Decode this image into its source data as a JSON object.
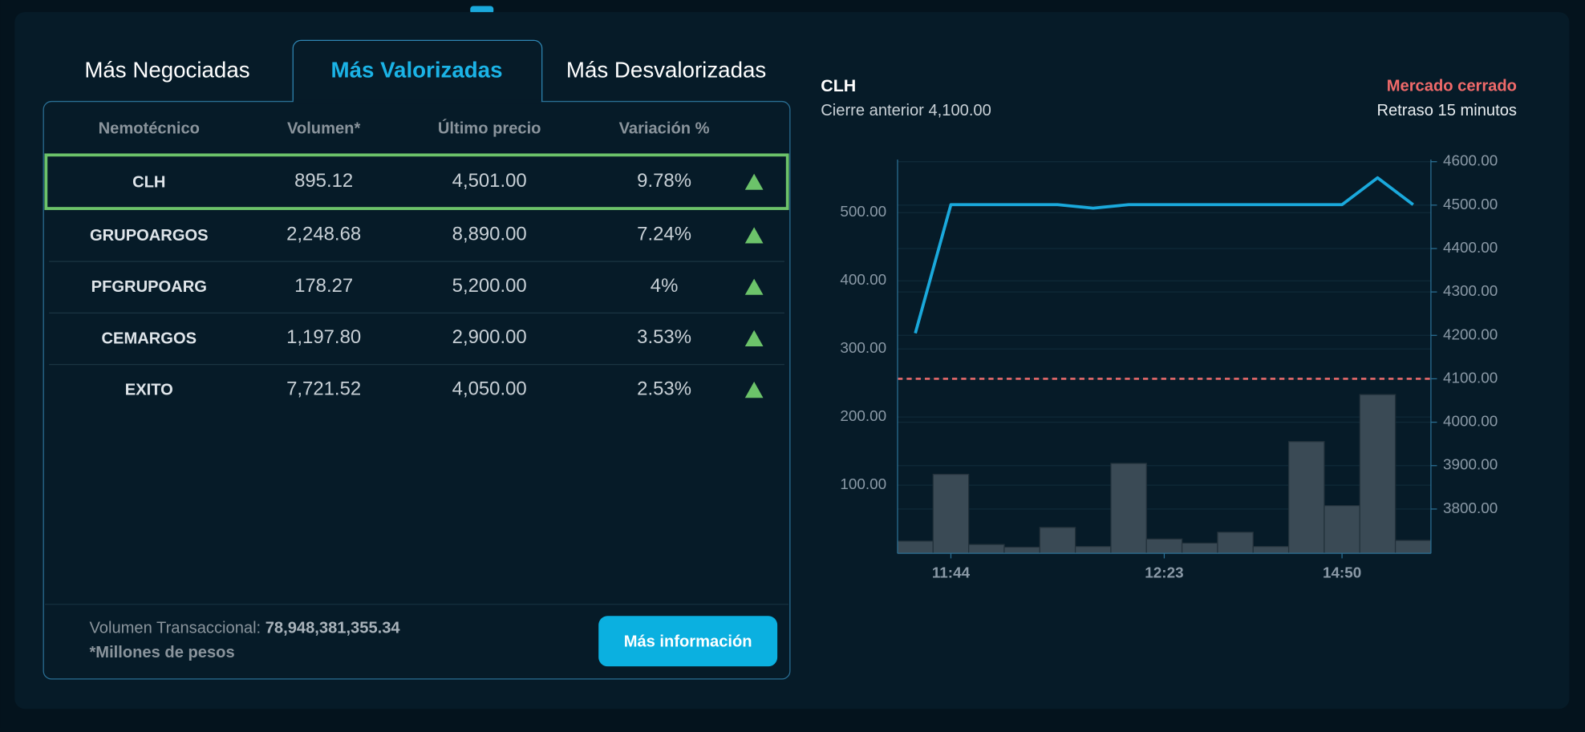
{
  "tabs": [
    "Más Negociadas",
    "Más Valorizadas",
    "Más Desvalorizadas"
  ],
  "active_tab": 1,
  "table": {
    "header": [
      "Nemotécnico",
      "Volumen*",
      "Último precio",
      "Variación %"
    ],
    "rows": [
      [
        "CLH",
        "895.12",
        "4,501.00",
        "9.78%"
      ],
      [
        "GRUPOARGOS",
        "2,248.68",
        "8,890.00",
        "7.24%"
      ],
      [
        "PFGRUPOARG",
        "178.27",
        "5,200.00",
        "4%"
      ],
      [
        "CEMARGOS",
        "1,197.80",
        "2,900.00",
        "3.53%"
      ],
      [
        "EXITO",
        "7,721.52",
        "4,050.00",
        "2.53%"
      ]
    ]
  },
  "footer": {
    "label": "Volumen Transaccional:",
    "value": "78,948,381,355.34",
    "note": "*Millones de pesos",
    "button": "Más información"
  },
  "detail": {
    "symbol": "CLH",
    "previous_close": "Cierre anterior 4,100.00",
    "status": "Mercado cerrado",
    "delay": "Retraso 15 minutos"
  },
  "chart_data": {
    "type": "bar-line",
    "categories": [
      null,
      "11:44",
      null,
      null,
      null,
      null,
      null,
      "12:23",
      null,
      null,
      null,
      null,
      "14:50",
      null,
      null
    ],
    "series": [
      {
        "type": "bar",
        "color": "#3a4a55",
        "values": [
          18,
          116,
          13,
          9,
          38,
          10,
          132,
          21,
          15,
          31,
          10,
          164,
          70,
          233,
          19
        ]
      },
      {
        "type": "line",
        "axis": "y2",
        "color": "#1aa9dc",
        "values": [
          4205,
          4501,
          4501,
          4501,
          4501,
          4493,
          4501,
          4501,
          4501,
          4501,
          4501,
          4501,
          4501,
          4563,
          4501
        ]
      }
    ],
    "reference_line": {
      "axis": "y2",
      "value": 4100,
      "color": "#e86b6b"
    },
    "ylim": [
      0,
      578
    ],
    "yticks": [
      {
        "value": 100,
        "label": "100.00"
      },
      {
        "value": 200,
        "label": "200.00"
      },
      {
        "value": 300,
        "label": "300.00"
      },
      {
        "value": 400,
        "label": "400.00"
      },
      {
        "value": 500,
        "label": "500.00"
      }
    ],
    "y2lim": [
      3698,
      4605
    ],
    "y2ticks": [
      {
        "value": 3800,
        "label": "3800.00"
      },
      {
        "value": 3900,
        "label": "3900.00"
      },
      {
        "value": 4000,
        "label": "4000.00"
      },
      {
        "value": 4100,
        "label": "4100.00"
      },
      {
        "value": 4200,
        "label": "4200.00"
      },
      {
        "value": 4300,
        "label": "4300.00"
      },
      {
        "value": 4400,
        "label": "4400.00"
      },
      {
        "value": 4500,
        "label": "4500.00"
      },
      {
        "value": 4600,
        "label": "4600.00"
      }
    ],
    "grid": true
  }
}
